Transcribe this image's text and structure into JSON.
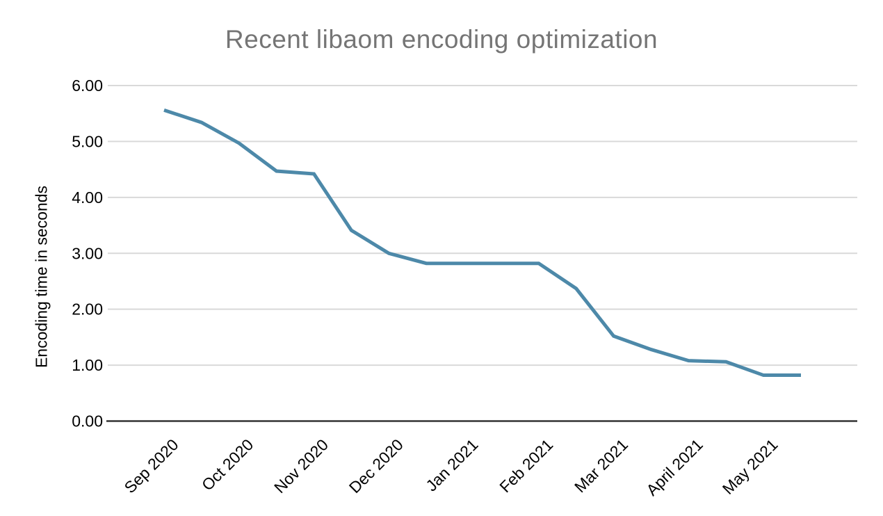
{
  "chart_data": {
    "type": "line",
    "title": "Recent libaom encoding optimization",
    "ylabel": "Encoding time in seconds",
    "xlabel": "",
    "x_tick_labels": [
      "Sep 2020",
      "Oct 2020",
      "Nov 2020",
      "Dec 2020",
      "Jan 2021",
      "Feb 2021",
      "Mar 2021",
      "April 2021",
      "May 2021"
    ],
    "y_tick_labels": [
      "0.00",
      "1.00",
      "2.00",
      "3.00",
      "4.00",
      "5.00",
      "6.00"
    ],
    "ylim": [
      0,
      6
    ],
    "points_per_x_tick": 2,
    "values": [
      5.56,
      5.34,
      4.97,
      4.47,
      4.42,
      3.41,
      3.0,
      2.82,
      2.82,
      2.82,
      2.82,
      2.37,
      1.52,
      1.28,
      1.08,
      1.06,
      0.82,
      0.82
    ],
    "grid": "horizontal",
    "legend_position": "none",
    "colors": {
      "line": "#4d89a9",
      "gridline": "#d9d9d9",
      "axis": "#333333",
      "title": "#757575",
      "tick_label": "#000000"
    }
  }
}
